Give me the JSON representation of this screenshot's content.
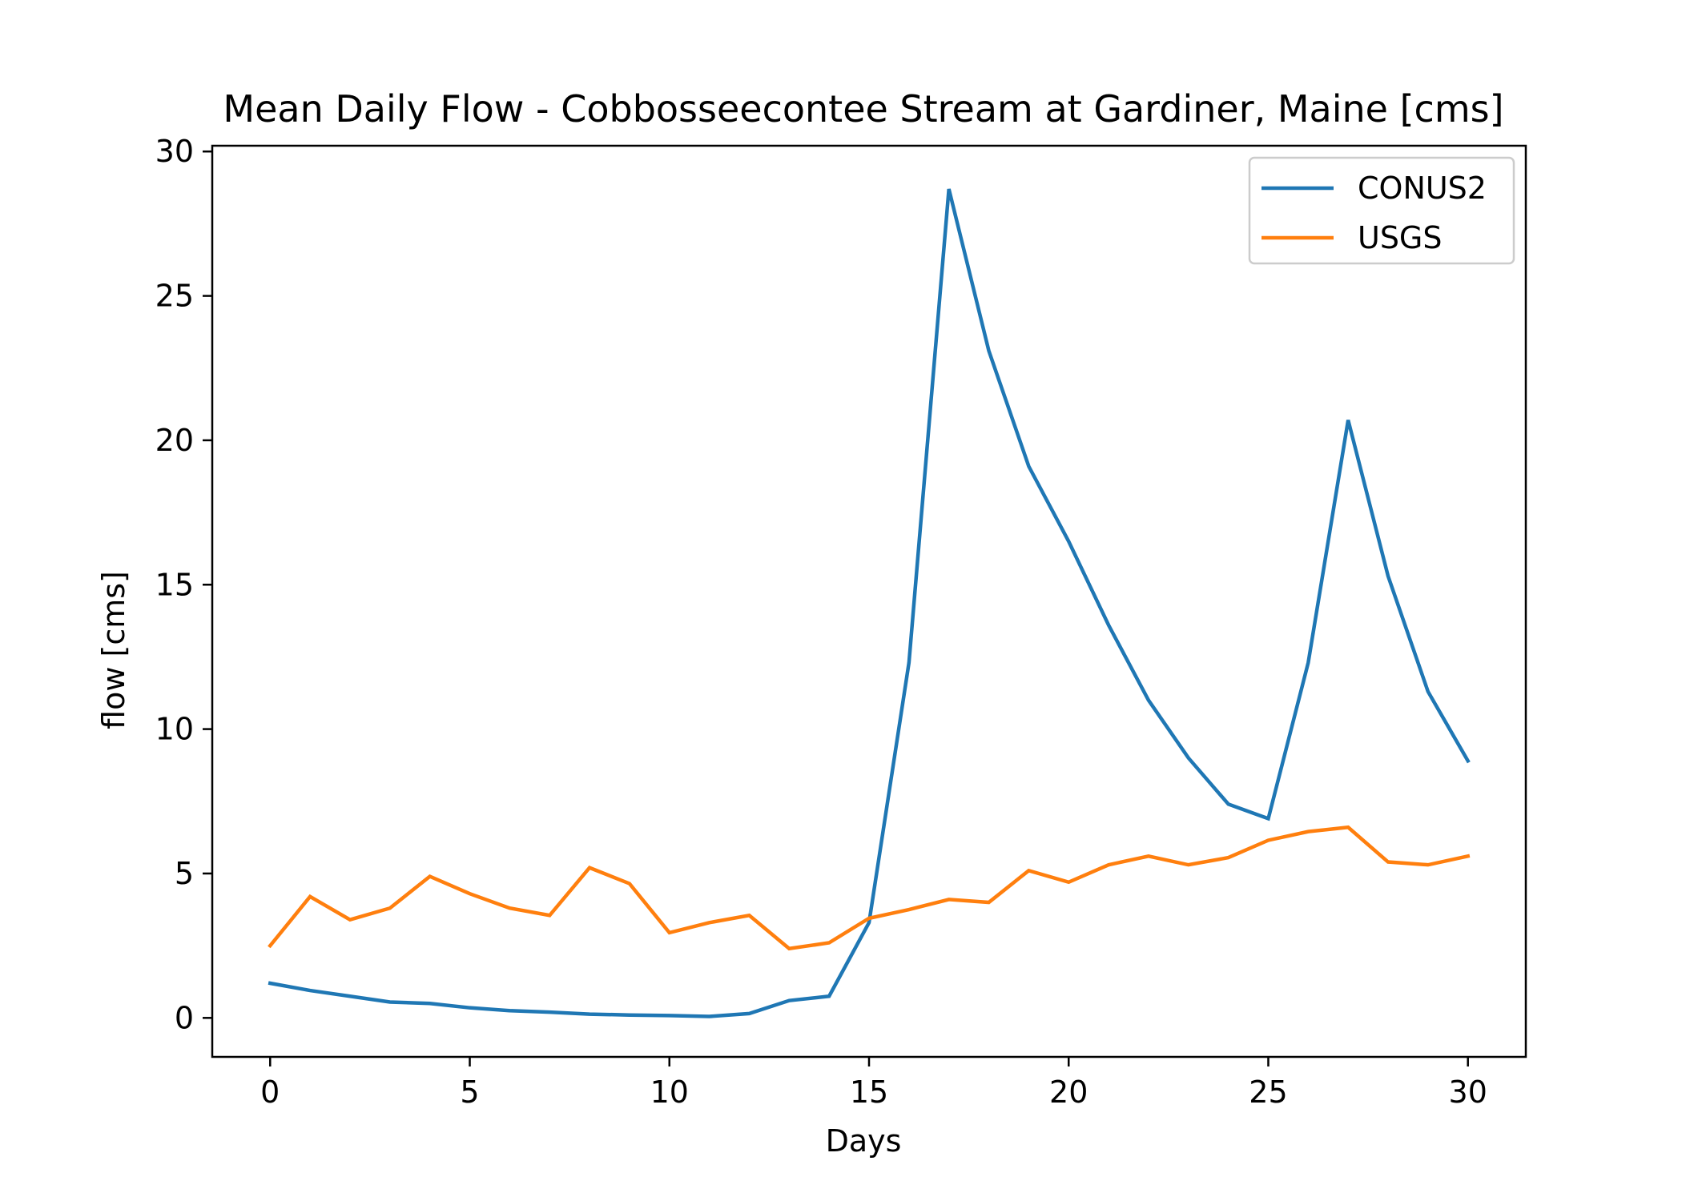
{
  "chart_data": {
    "type": "line",
    "title": "Mean Daily Flow - Cobbosseecontee Stream at Gardiner, Maine [cms]",
    "xlabel": "Days",
    "ylabel": "flow [cms]",
    "xlim": [
      -1.45,
      31.45
    ],
    "ylim": [
      -1.35,
      30.2
    ],
    "xticks": [
      0,
      5,
      10,
      15,
      20,
      25,
      30
    ],
    "yticks": [
      0,
      5,
      10,
      15,
      20,
      25,
      30
    ],
    "grid": false,
    "legend_position": "top-right",
    "x": [
      0,
      1,
      2,
      3,
      4,
      5,
      6,
      7,
      8,
      9,
      10,
      11,
      12,
      13,
      14,
      15,
      16,
      17,
      18,
      19,
      20,
      21,
      22,
      23,
      24,
      25,
      26,
      27,
      28,
      29,
      30
    ],
    "series": [
      {
        "name": "CONUS2",
        "color": "#1f77b4",
        "values": [
          1.2,
          0.95,
          0.75,
          0.55,
          0.5,
          0.35,
          0.25,
          0.2,
          0.13,
          0.1,
          0.08,
          0.05,
          0.15,
          0.6,
          0.75,
          3.3,
          12.3,
          28.7,
          23.1,
          19.1,
          16.5,
          13.6,
          11.0,
          9.0,
          7.4,
          6.9,
          12.3,
          20.7,
          15.3,
          11.3,
          8.9
        ]
      },
      {
        "name": "USGS",
        "color": "#ff7f0e",
        "values": [
          2.5,
          4.2,
          3.4,
          3.8,
          4.9,
          4.3,
          3.8,
          3.55,
          5.2,
          4.65,
          2.95,
          3.3,
          3.55,
          2.4,
          2.6,
          3.45,
          3.75,
          4.1,
          4.0,
          5.1,
          4.7,
          5.3,
          5.6,
          5.3,
          5.55,
          6.15,
          6.45,
          6.6,
          5.4,
          5.3,
          5.6
        ]
      }
    ]
  }
}
